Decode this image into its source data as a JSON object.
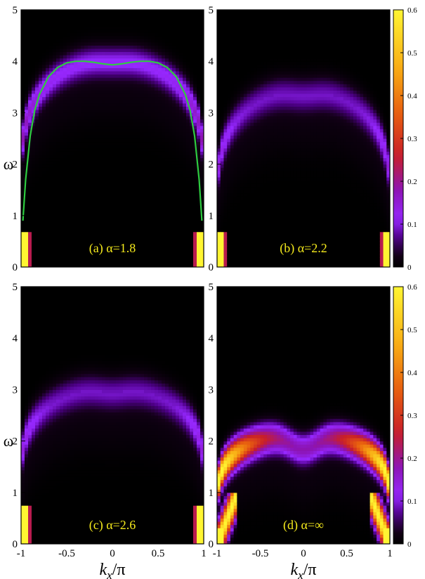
{
  "chart_data": [
    {
      "type": "heatmap",
      "panel": "a",
      "label": "(a) α=1.8",
      "xlim": [
        -1,
        1
      ],
      "ylim": [
        0,
        5
      ],
      "yticks": [
        "0",
        "1",
        "2",
        "3",
        "4",
        "5"
      ],
      "ylabel": "ω",
      "xlabel": "",
      "band": {
        "omega_edge": 1.8,
        "omega_peak_zone": 4.05,
        "omega_peak_center": 4.0,
        "width": 0.3,
        "peak_intensity": 0.13
      },
      "low_edge": {
        "omega_max": 0.7,
        "intensity": 0.6
      },
      "overlay_curve": {
        "color": "#2ecc40",
        "x": [
          -0.98,
          -0.95,
          -0.9,
          -0.85,
          -0.8,
          -0.7,
          -0.6,
          -0.5,
          -0.4,
          -0.3,
          -0.2,
          -0.1,
          0,
          0.1,
          0.2,
          0.3,
          0.4,
          0.5,
          0.6,
          0.7,
          0.8,
          0.85,
          0.9,
          0.95,
          0.98
        ],
        "y": [
          0.9,
          1.7,
          2.55,
          3.05,
          3.35,
          3.7,
          3.88,
          3.97,
          4.0,
          4.0,
          3.98,
          3.95,
          3.93,
          3.95,
          3.98,
          4.0,
          4.0,
          3.97,
          3.88,
          3.7,
          3.35,
          3.05,
          2.55,
          1.7,
          0.9
        ]
      }
    },
    {
      "type": "heatmap",
      "panel": "b",
      "label": "(b) α=2.2",
      "xlim": [
        -1,
        1
      ],
      "ylim": [
        0,
        5
      ],
      "yticks": [
        "0",
        "1",
        "2",
        "3",
        "4",
        "5"
      ],
      "xlabel": "",
      "band": {
        "omega_edge": 1.3,
        "omega_peak_zone": 3.45,
        "omega_peak_center": 3.35,
        "width": 0.32,
        "peak_intensity": 0.1
      },
      "low_edge": {
        "omega_max": 0.7,
        "intensity": 0.6
      },
      "colorbar": {
        "range": [
          0,
          0.6
        ],
        "ticks": [
          "0",
          "0.1",
          "0.2",
          "0.3",
          "0.4",
          "0.5",
          "0.6"
        ]
      }
    },
    {
      "type": "heatmap",
      "panel": "c",
      "label": "(c) α=2.6",
      "xlim": [
        -1,
        1
      ],
      "ylim": [
        0,
        5
      ],
      "yticks": [
        "0",
        "1",
        "2",
        "3",
        "4",
        "5"
      ],
      "xticks": [
        "-1",
        "-0.5",
        "0",
        "0.5",
        "1"
      ],
      "ylabel": "ω",
      "xlabel": "k_x/π",
      "band": {
        "omega_edge": 1.3,
        "omega_peak_zone": 3.05,
        "omega_peak_center": 2.95,
        "width": 0.32,
        "peak_intensity": 0.1
      },
      "low_edge": {
        "omega_max": 0.75,
        "intensity": 0.6
      }
    },
    {
      "type": "heatmap",
      "panel": "d",
      "label": "(d) α=∞",
      "xlim": [
        -1,
        1
      ],
      "ylim": [
        0,
        5
      ],
      "yticks": [
        "0",
        "1",
        "2",
        "3",
        "4",
        "5"
      ],
      "xticks": [
        "-1",
        "-0.5",
        "0",
        "0.5",
        "1"
      ],
      "xlabel": "k_x/π",
      "band": {
        "omega_edge": 0.8,
        "omega_peak_zone": 2.15,
        "omega_peak_center": 1.85,
        "width": 0.28,
        "peak_intensity": 0.32
      },
      "low_edge": {
        "omega_max": 0.3,
        "intensity": 0.6
      },
      "colorbar": {
        "range": [
          0,
          0.6
        ],
        "ticks": [
          "0",
          "0.1",
          "0.2",
          "0.3",
          "0.4",
          "0.5",
          "0.6"
        ]
      }
    }
  ]
}
